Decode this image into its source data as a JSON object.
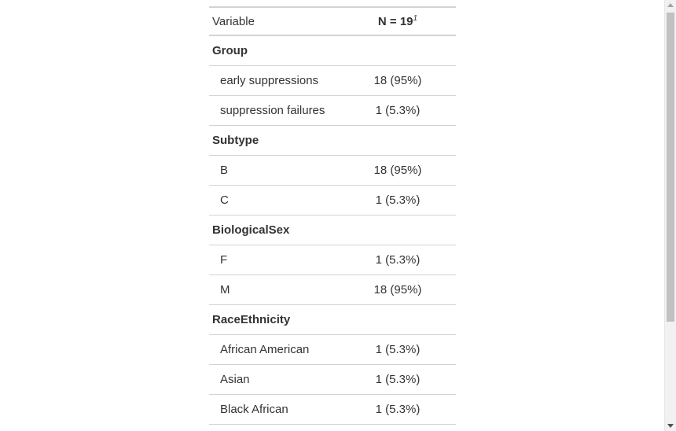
{
  "table": {
    "header": {
      "variable_label": "Variable",
      "n_label": "N = 19",
      "n_footnote": "1"
    },
    "rows": [
      {
        "type": "group",
        "label": "Group",
        "value": ""
      },
      {
        "type": "level",
        "label": "early suppressions",
        "value": "18 (95%)"
      },
      {
        "type": "level",
        "label": "suppression failures",
        "value": "1 (5.3%)"
      },
      {
        "type": "group",
        "label": "Subtype",
        "value": ""
      },
      {
        "type": "level",
        "label": "B",
        "value": "18 (95%)"
      },
      {
        "type": "level",
        "label": "C",
        "value": "1 (5.3%)"
      },
      {
        "type": "group",
        "label": "BiologicalSex",
        "value": ""
      },
      {
        "type": "level",
        "label": "F",
        "value": "1 (5.3%)"
      },
      {
        "type": "level",
        "label": "M",
        "value": "18 (95%)"
      },
      {
        "type": "group",
        "label": "RaceEthnicity",
        "value": ""
      },
      {
        "type": "level",
        "label": "African American",
        "value": "1 (5.3%)"
      },
      {
        "type": "level",
        "label": "Asian",
        "value": "1 (5.3%)"
      },
      {
        "type": "level",
        "label": "Black African",
        "value": "1 (5.3%)"
      }
    ]
  }
}
